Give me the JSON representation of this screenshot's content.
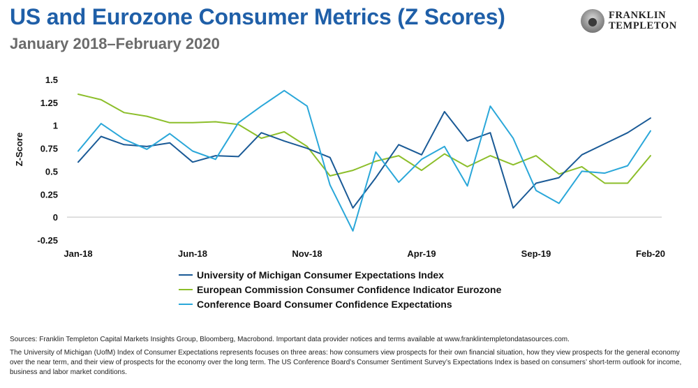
{
  "header": {
    "title": "US and Eurozone Consumer Metrics (Z Scores)",
    "subtitle": "January 2018–February 2020",
    "logo_line1": "FRANKLIN",
    "logo_line2": "TEMPLETON",
    "logo_icon": "franklin-portrait-icon"
  },
  "footnote": {
    "source": "Sources: Franklin Templeton Capital Markets Insights Group, Bloomberg, Macrobond. Important data provider notices and terms available at www.franklintempletondatasources.com.",
    "note": "The University of Michigan (UofM) Index of Consumer Expectations represents focuses on three areas: how consumers view prospects for their own financial situation, how they view prospects for the general economy over the near term, and their view of prospects for the economy over the long term. The US Conference Board’s Consumer Sentiment Survey’s Expectations Index is based on consumers’ short-term outlook for income, business and labor market conditions."
  },
  "chart_data": {
    "type": "line",
    "ylabel": "Z-Score",
    "xlabel": "",
    "ylim": [
      -0.25,
      1.5
    ],
    "yticks": [
      "1.5",
      "1.25",
      "1",
      "0.75",
      "0.5",
      "0.25",
      "0",
      "-0.25"
    ],
    "ytick_values": [
      1.5,
      1.25,
      1,
      0.75,
      0.5,
      0.25,
      0,
      -0.25
    ],
    "x": [
      "Jan-18",
      "Feb-18",
      "Mar-18",
      "Apr-18",
      "May-18",
      "Jun-18",
      "Jul-18",
      "Aug-18",
      "Sep-18",
      "Oct-18",
      "Nov-18",
      "Dec-18",
      "Jan-19",
      "Feb-19",
      "Mar-19",
      "Apr-19",
      "May-19",
      "Jun-19",
      "Jul-19",
      "Aug-19",
      "Sep-19",
      "Oct-19",
      "Nov-19",
      "Dec-19",
      "Jan-20",
      "Feb-20"
    ],
    "xtick_labels": [
      "Jan-18",
      "Jun-18",
      "Nov-18",
      "Apr-19",
      "Sep-19",
      "Feb-20"
    ],
    "xtick_indices": [
      0,
      5,
      10,
      15,
      20,
      25
    ],
    "grid": false,
    "legend_position": "bottom",
    "series": [
      {
        "name": "University of Michigan Consumer Expectations Index",
        "color": "#1a5a96",
        "values": [
          0.6,
          0.88,
          0.79,
          0.77,
          0.81,
          0.6,
          0.67,
          0.66,
          0.92,
          0.83,
          0.75,
          0.65,
          0.1,
          0.43,
          0.79,
          0.68,
          1.15,
          0.83,
          0.92,
          0.1,
          0.37,
          0.43,
          0.68,
          0.8,
          0.92,
          1.08
        ]
      },
      {
        "name": "European Commission Consumer Confidence Indicator Eurozone",
        "color": "#8cbe2a",
        "values": [
          1.34,
          1.28,
          1.14,
          1.1,
          1.03,
          1.03,
          1.04,
          1.01,
          0.86,
          0.93,
          0.77,
          0.45,
          0.51,
          0.61,
          0.67,
          0.51,
          0.69,
          0.55,
          0.67,
          0.57,
          0.67,
          0.47,
          0.55,
          0.37,
          0.37,
          0.67
        ]
      },
      {
        "name": "Conference Board Consumer Confidence Expectations",
        "color": "#2aa7d9",
        "values": [
          0.72,
          1.02,
          0.85,
          0.74,
          0.91,
          0.72,
          0.63,
          1.03,
          1.21,
          1.38,
          1.21,
          0.35,
          -0.15,
          0.71,
          0.38,
          0.63,
          0.77,
          0.34,
          1.21,
          0.86,
          0.29,
          0.15,
          0.5,
          0.48,
          0.56,
          0.94
        ]
      }
    ]
  }
}
